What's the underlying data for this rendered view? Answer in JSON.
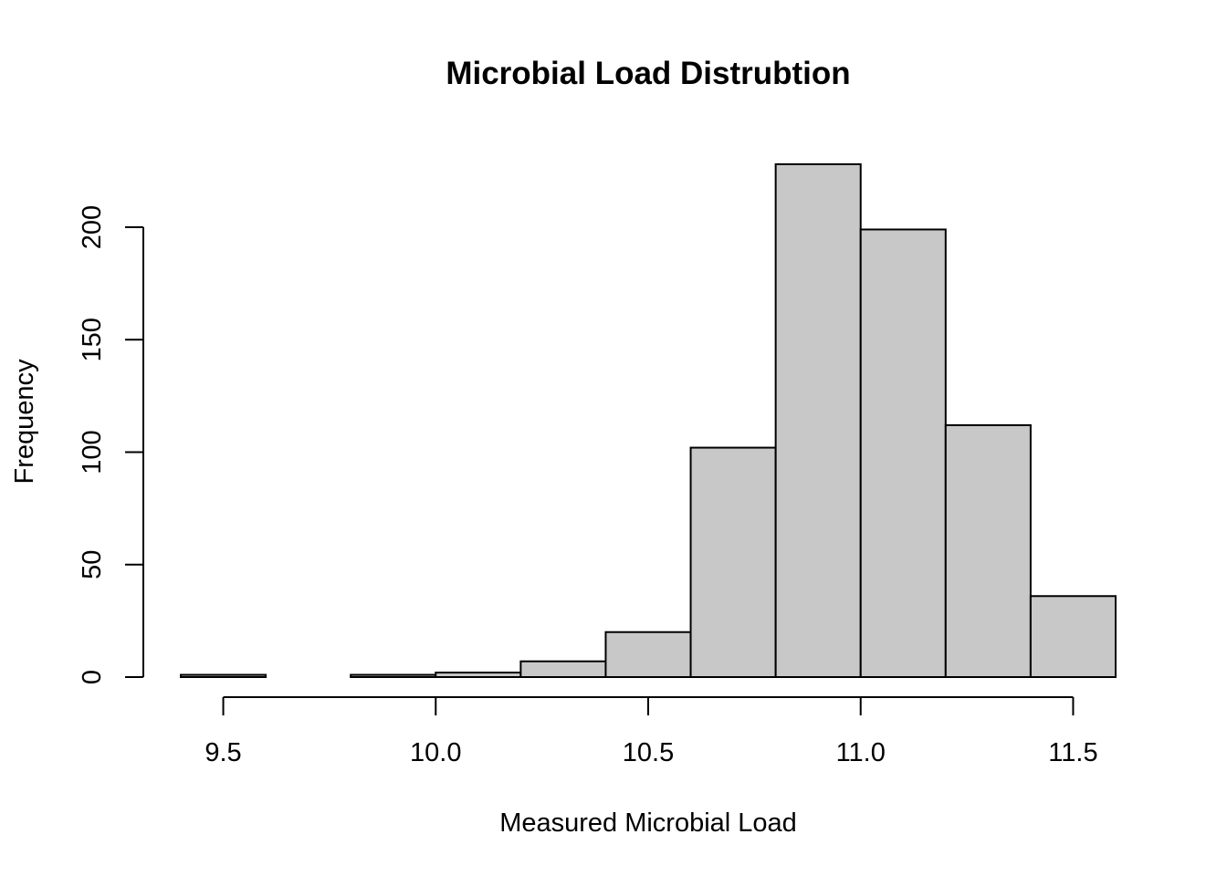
{
  "chart_data": {
    "type": "bar",
    "title": "Microbial Load Distrubtion",
    "xlabel": "Measured Microbial Load",
    "ylabel": "Frequency",
    "bins": [
      {
        "start": 9.4,
        "end": 9.6,
        "count": 1
      },
      {
        "start": 9.6,
        "end": 9.8,
        "count": 0
      },
      {
        "start": 9.8,
        "end": 10.0,
        "count": 1
      },
      {
        "start": 10.0,
        "end": 10.2,
        "count": 2
      },
      {
        "start": 10.2,
        "end": 10.4,
        "count": 7
      },
      {
        "start": 10.4,
        "end": 10.6,
        "count": 20
      },
      {
        "start": 10.6,
        "end": 10.8,
        "count": 102
      },
      {
        "start": 10.8,
        "end": 11.0,
        "count": 228
      },
      {
        "start": 11.0,
        "end": 11.2,
        "count": 199
      },
      {
        "start": 11.2,
        "end": 11.4,
        "count": 112
      },
      {
        "start": 11.4,
        "end": 11.6,
        "count": 36
      }
    ],
    "x_ticks": [
      9.5,
      10.0,
      10.5,
      11.0,
      11.5
    ],
    "x_tick_labels": [
      "9.5",
      "10.0",
      "10.5",
      "11.0",
      "11.5"
    ],
    "y_ticks": [
      0,
      50,
      100,
      150,
      200
    ],
    "y_tick_labels": [
      "0",
      "50",
      "100",
      "150",
      "200"
    ],
    "xlim": [
      9.4,
      11.6
    ],
    "ylim": [
      0,
      228
    ],
    "grid": false,
    "legend": "none",
    "colors": {
      "bar_fill": "#c8c8c8",
      "bar_stroke": "#000000"
    }
  }
}
